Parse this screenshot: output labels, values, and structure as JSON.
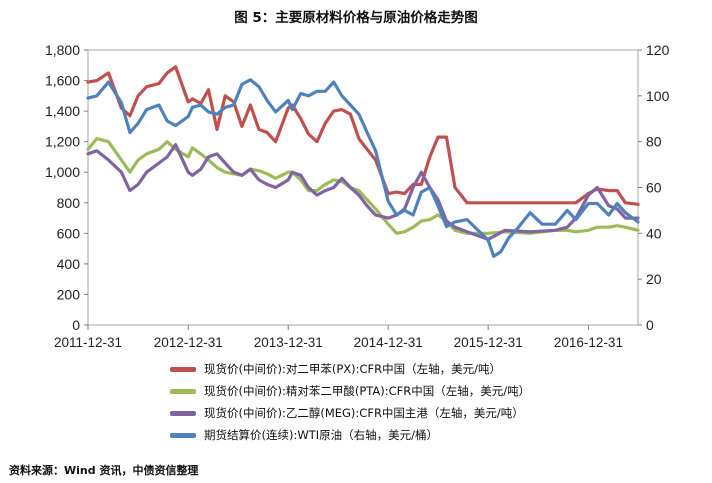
{
  "title": "图 5：主要原材料价格与原油价格走势图",
  "source": "资料来源：Wind 资讯，中债资信整理",
  "chart_data": {
    "type": "line",
    "x_ticks": [
      "2011-12-31",
      "2012-12-31",
      "2013-12-31",
      "2014-12-31",
      "2015-12-31",
      "2016-12-31"
    ],
    "x_range": [
      "2011-12-31",
      "2017-06-30"
    ],
    "y_left": {
      "min": 0,
      "max": 1800,
      "ticks": [
        "0",
        "200",
        "400",
        "600",
        "800",
        "1,000",
        "1,200",
        "1,400",
        "1,600",
        "1,800"
      ]
    },
    "y_right": {
      "min": 0,
      "max": 120,
      "ticks": [
        "0",
        "20",
        "40",
        "60",
        "80",
        "100",
        "120"
      ]
    },
    "grid": false,
    "legend_position": "bottom",
    "series": [
      {
        "name": "现货价(中间价):对二甲苯(PX):CFR中国（左轴，美元/吨）",
        "axis": "left",
        "color": "#c0504d",
        "x": [
          "2011-12-31",
          "2012-02-01",
          "2012-03-15",
          "2012-05-01",
          "2012-06-01",
          "2012-07-01",
          "2012-08-01",
          "2012-09-15",
          "2012-10-15",
          "2012-11-15",
          "2012-12-31",
          "2013-01-15",
          "2013-02-15",
          "2013-03-15",
          "2013-04-15",
          "2013-05-15",
          "2013-06-15",
          "2013-07-15",
          "2013-08-15",
          "2013-09-15",
          "2013-10-15",
          "2013-11-15",
          "2013-12-31",
          "2014-01-15",
          "2014-02-15",
          "2014-03-15",
          "2014-04-15",
          "2014-05-15",
          "2014-06-15",
          "2014-07-15",
          "2014-08-15",
          "2014-09-15",
          "2014-10-15",
          "2014-11-15",
          "2014-12-31",
          "2015-01-31",
          "2015-03-01",
          "2015-04-01",
          "2015-05-01",
          "2015-06-01",
          "2015-07-01",
          "2015-08-01",
          "2015-09-01",
          "2015-10-15",
          "2015-12-31",
          "2016-03-01",
          "2016-06-01",
          "2016-09-01",
          "2016-10-15",
          "2016-11-15",
          "2016-12-31",
          "2017-02-01",
          "2017-03-15",
          "2017-04-15",
          "2017-05-15",
          "2017-06-30"
        ],
        "values": [
          1590,
          1600,
          1650,
          1420,
          1370,
          1500,
          1560,
          1580,
          1650,
          1690,
          1460,
          1480,
          1450,
          1540,
          1280,
          1500,
          1460,
          1300,
          1440,
          1280,
          1260,
          1200,
          1420,
          1440,
          1350,
          1250,
          1200,
          1320,
          1400,
          1410,
          1380,
          1220,
          1150,
          1080,
          860,
          870,
          860,
          920,
          920,
          1100,
          1230,
          1230,
          900,
          800,
          800,
          800,
          800,
          800,
          800,
          800,
          860,
          890,
          880,
          880,
          800,
          790
        ]
      },
      {
        "name": "现货价(中间价):精对苯二甲酸(PTA):CFR中国（左轴，美元/吨）",
        "axis": "left",
        "color": "#9bbb59",
        "x": [
          "2011-12-31",
          "2012-02-01",
          "2012-03-15",
          "2012-05-01",
          "2012-06-01",
          "2012-07-01",
          "2012-08-01",
          "2012-09-15",
          "2012-10-15",
          "2012-11-15",
          "2012-12-31",
          "2013-01-15",
          "2013-02-15",
          "2013-03-15",
          "2013-04-15",
          "2013-05-15",
          "2013-06-15",
          "2013-07-15",
          "2013-08-15",
          "2013-09-15",
          "2013-10-15",
          "2013-11-15",
          "2013-12-31",
          "2014-01-15",
          "2014-02-15",
          "2014-03-15",
          "2014-04-15",
          "2014-05-15",
          "2014-06-15",
          "2014-07-15",
          "2014-08-15",
          "2014-09-15",
          "2014-10-15",
          "2014-11-15",
          "2014-12-31",
          "2015-01-31",
          "2015-03-01",
          "2015-04-01",
          "2015-05-01",
          "2015-06-01",
          "2015-07-01",
          "2015-08-01",
          "2015-09-01",
          "2015-10-15",
          "2015-12-31",
          "2016-03-01",
          "2016-06-01",
          "2016-09-01",
          "2016-10-15",
          "2016-11-15",
          "2016-12-31",
          "2017-02-01",
          "2017-03-15",
          "2017-04-15",
          "2017-05-15",
          "2017-06-30"
        ],
        "values": [
          1150,
          1220,
          1200,
          1080,
          1000,
          1080,
          1120,
          1150,
          1200,
          1150,
          1100,
          1160,
          1120,
          1080,
          1030,
          1000,
          990,
          980,
          1020,
          1010,
          990,
          960,
          1000,
          1000,
          950,
          880,
          880,
          920,
          950,
          940,
          900,
          880,
          820,
          760,
          660,
          600,
          610,
          640,
          680,
          690,
          720,
          680,
          620,
          600,
          600,
          610,
          600,
          620,
          620,
          610,
          620,
          640,
          640,
          650,
          640,
          620
        ]
      },
      {
        "name": "现货价(中间价):乙二醇(MEG):CFR中国主港（左轴，美元/吨）",
        "axis": "left",
        "color": "#8064a2",
        "x": [
          "2011-12-31",
          "2012-02-01",
          "2012-03-15",
          "2012-05-01",
          "2012-06-01",
          "2012-07-01",
          "2012-08-01",
          "2012-09-15",
          "2012-10-15",
          "2012-11-15",
          "2012-12-31",
          "2013-01-15",
          "2013-02-15",
          "2013-03-15",
          "2013-04-15",
          "2013-05-15",
          "2013-06-15",
          "2013-07-15",
          "2013-08-15",
          "2013-09-15",
          "2013-10-15",
          "2013-11-15",
          "2013-12-31",
          "2014-01-15",
          "2014-02-15",
          "2014-03-15",
          "2014-04-15",
          "2014-05-15",
          "2014-06-15",
          "2014-07-15",
          "2014-08-15",
          "2014-09-15",
          "2014-10-15",
          "2014-11-15",
          "2014-12-31",
          "2015-01-31",
          "2015-03-01",
          "2015-04-01",
          "2015-05-01",
          "2015-06-01",
          "2015-07-01",
          "2015-08-01",
          "2015-09-01",
          "2015-10-15",
          "2015-12-31",
          "2016-03-01",
          "2016-06-01",
          "2016-09-01",
          "2016-10-15",
          "2016-11-15",
          "2016-12-31",
          "2017-02-01",
          "2017-03-15",
          "2017-04-15",
          "2017-05-15",
          "2017-06-30"
        ],
        "values": [
          1120,
          1140,
          1080,
          1000,
          880,
          920,
          1000,
          1060,
          1100,
          1180,
          1000,
          980,
          1020,
          1100,
          1120,
          1060,
          1000,
          980,
          1020,
          950,
          920,
          900,
          950,
          1000,
          980,
          900,
          850,
          880,
          900,
          960,
          900,
          850,
          780,
          720,
          700,
          720,
          760,
          900,
          1000,
          900,
          820,
          680,
          640,
          610,
          560,
          620,
          610,
          620,
          640,
          700,
          850,
          900,
          780,
          760,
          700,
          700
        ]
      },
      {
        "name": "期货结算价(连续):WTI原油（右轴，美元/桶）",
        "axis": "right",
        "color": "#4f81bd",
        "x": [
          "2011-12-31",
          "2012-02-01",
          "2012-03-15",
          "2012-05-01",
          "2012-06-01",
          "2012-07-01",
          "2012-08-01",
          "2012-09-15",
          "2012-10-15",
          "2012-11-15",
          "2012-12-31",
          "2013-01-15",
          "2013-02-15",
          "2013-03-15",
          "2013-04-15",
          "2013-05-15",
          "2013-06-15",
          "2013-07-15",
          "2013-08-15",
          "2013-09-15",
          "2013-10-15",
          "2013-11-15",
          "2013-12-31",
          "2014-01-15",
          "2014-02-15",
          "2014-03-15",
          "2014-04-15",
          "2014-05-15",
          "2014-06-15",
          "2014-07-15",
          "2014-08-15",
          "2014-09-15",
          "2014-10-15",
          "2014-11-15",
          "2014-12-31",
          "2015-01-31",
          "2015-03-01",
          "2015-04-01",
          "2015-05-01",
          "2015-06-01",
          "2015-07-01",
          "2015-08-01",
          "2015-09-01",
          "2015-10-15",
          "2015-12-31",
          "2016-01-20",
          "2016-02-15",
          "2016-03-15",
          "2016-04-15",
          "2016-06-01",
          "2016-07-15",
          "2016-09-01",
          "2016-10-15",
          "2016-11-15",
          "2016-12-31",
          "2017-02-01",
          "2017-03-15",
          "2017-04-15",
          "2017-05-15",
          "2017-06-30"
        ],
        "values": [
          99,
          100,
          106,
          97,
          84,
          88,
          94,
          96,
          89,
          87,
          91,
          95,
          96,
          93,
          92,
          95,
          96,
          105,
          107,
          104,
          98,
          93,
          98,
          94,
          101,
          100,
          102,
          102,
          106,
          100,
          96,
          92,
          84,
          76,
          54,
          48,
          50,
          48,
          58,
          60,
          52,
          43,
          45,
          46,
          37,
          30,
          32,
          38,
          42,
          49,
          44,
          44,
          50,
          46,
          53,
          53,
          48,
          53,
          49,
          45
        ]
      }
    ]
  }
}
